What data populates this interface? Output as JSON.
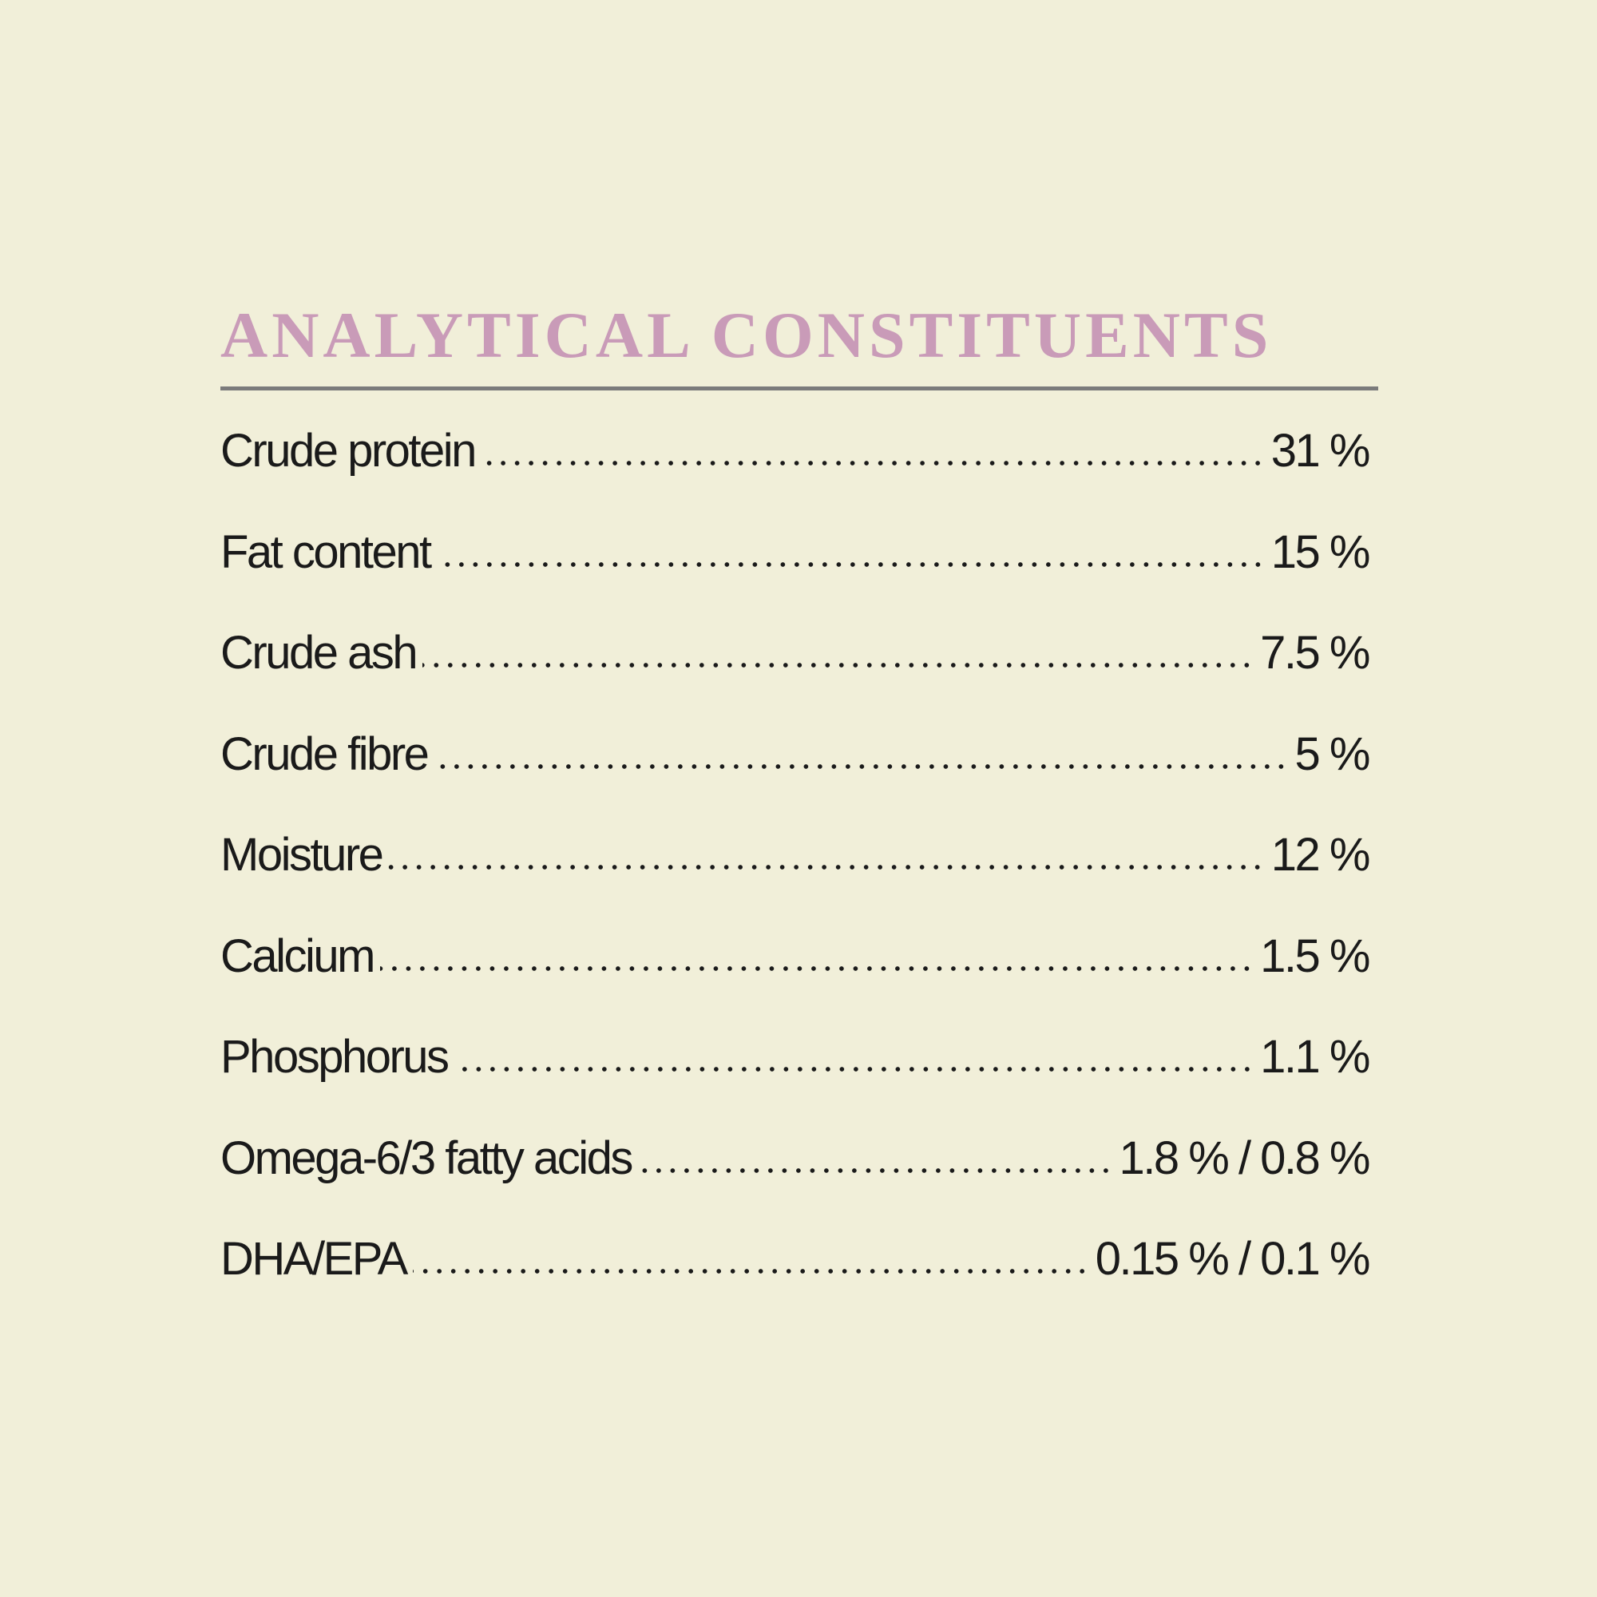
{
  "title": "ANALYTICAL CONSTITUENTS",
  "rows": [
    {
      "label": "Crude protein",
      "value": "31 %"
    },
    {
      "label": "Fat content",
      "value": "15 %"
    },
    {
      "label": "Crude ash",
      "value": "7.5 %"
    },
    {
      "label": "Crude fibre",
      "value": "5 %"
    },
    {
      "label": "Moisture",
      "value": "12 %"
    },
    {
      "label": "Calcium",
      "value": "1.5 %"
    },
    {
      "label": "Phosphorus",
      "value": "1.1 %"
    },
    {
      "label": "Omega-6/3 fatty acids",
      "value": "1.8 % / 0.8 %"
    },
    {
      "label": "DHA/EPA",
      "value": "0.15 % / 0.1 %"
    }
  ]
}
